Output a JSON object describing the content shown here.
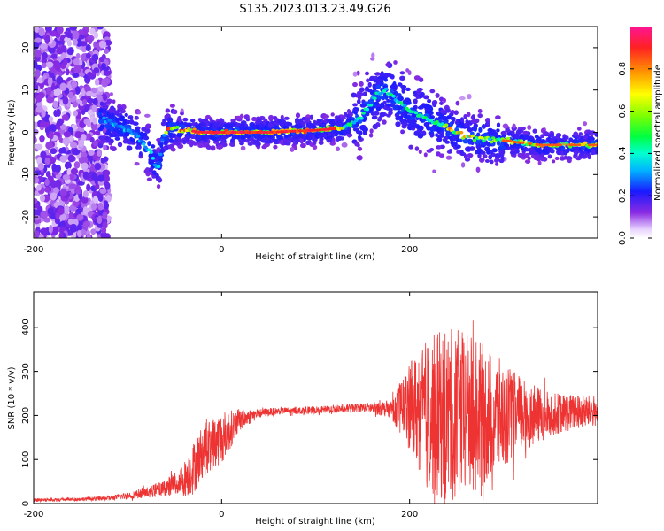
{
  "chart_data": [
    {
      "type": "heatmap",
      "title": "S135.2023.013.23.49.G26",
      "xlabel": "Height of straight line (km)",
      "ylabel": "Frequency (Hz)",
      "xlim": [
        -200,
        400
      ],
      "ylim": [
        -25,
        25
      ],
      "x_ticks": [
        -200,
        0,
        200
      ],
      "y_ticks": [
        -20,
        -10,
        0,
        10,
        20
      ],
      "colorbar": {
        "label": "Normalized spectral amplitude",
        "range": [
          0,
          1
        ],
        "ticks": [
          0.0,
          0.2,
          0.4,
          0.6,
          0.8
        ]
      },
      "ridge": {
        "name": "",
        "points": [
          [
            -125,
            3
          ],
          [
            -110,
            1.5
          ],
          [
            -95,
            0
          ],
          [
            -85,
            -2
          ],
          [
            -75,
            -5
          ],
          [
            -70,
            -8
          ],
          [
            -68,
            -9
          ],
          [
            -62,
            -1
          ],
          [
            -55,
            1
          ],
          [
            -40,
            0.5
          ],
          [
            -20,
            0
          ],
          [
            0,
            0
          ],
          [
            50,
            0
          ],
          [
            100,
            0.5
          ],
          [
            130,
            1
          ],
          [
            150,
            4
          ],
          [
            165,
            9
          ],
          [
            175,
            10
          ],
          [
            185,
            8
          ],
          [
            200,
            5
          ],
          [
            230,
            2
          ],
          [
            260,
            -1
          ],
          [
            300,
            -2
          ],
          [
            340,
            -3
          ],
          [
            400,
            -3
          ]
        ]
      }
    },
    {
      "type": "line",
      "title": "",
      "xlabel": "Height of straight line (km)",
      "ylabel": "SNR (10 * v/v)",
      "xlim": [
        -200,
        400
      ],
      "ylim": [
        0,
        480
      ],
      "x_ticks": [
        -200,
        0,
        200
      ],
      "y_ticks": [
        0,
        100,
        200,
        300,
        400
      ],
      "grid": false,
      "series": [
        {
          "name": "",
          "color": "#ee3333",
          "envelope": {
            "x": [
              -200,
              -150,
              -120,
              -100,
              -80,
              -60,
              -40,
              -30,
              -20,
              0,
              20,
              40,
              60,
              100,
              150,
              180,
              200,
              220,
              240,
              260,
              280,
              300,
              330,
              360,
              400
            ],
            "mid": [
              8,
              10,
              12,
              18,
              25,
              35,
              55,
              80,
              120,
              150,
              190,
              205,
              210,
              212,
              218,
              215,
              220,
              200,
              200,
              200,
              200,
              200,
              200,
              205,
              210
            ],
            "spread": [
              4,
              4,
              5,
              8,
              12,
              18,
              40,
              60,
              60,
              60,
              25,
              10,
              8,
              8,
              10,
              20,
              100,
              180,
              200,
              190,
              160,
              120,
              70,
              45,
              35
            ]
          }
        }
      ]
    }
  ]
}
